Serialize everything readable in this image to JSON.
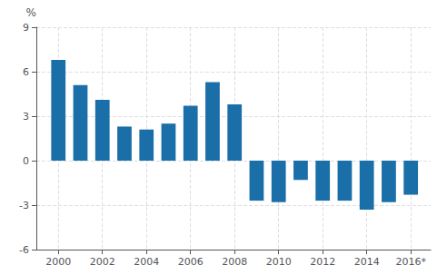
{
  "chart_data": {
    "type": "bar",
    "ylabel": "%",
    "x": [
      2000,
      2001,
      2002,
      2003,
      2004,
      2005,
      2006,
      2007,
      2008,
      2009,
      2010,
      2011,
      2012,
      2013,
      2014,
      2015,
      2016
    ],
    "values": [
      6.8,
      5.1,
      4.1,
      2.3,
      2.1,
      2.5,
      3.7,
      5.3,
      3.8,
      -2.7,
      -2.8,
      -1.3,
      -2.7,
      -2.7,
      -3.3,
      -2.8,
      -2.3
    ],
    "color": "#1a6fa8",
    "xlim": [
      1999.0,
      2016.9
    ],
    "xticks": [
      2000,
      2002,
      2004,
      2006,
      2008,
      2010,
      2012,
      2014,
      {
        "value": 2016,
        "label": "2016*"
      }
    ],
    "ylim": [
      -6,
      9
    ],
    "yticks": [
      -6,
      -3,
      0,
      3,
      6,
      9
    ],
    "grid": true
  }
}
